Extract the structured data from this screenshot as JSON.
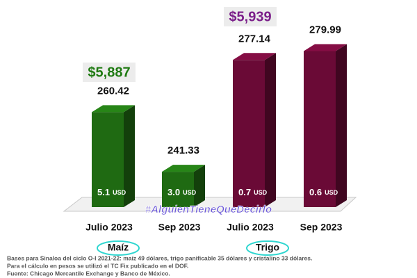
{
  "chart_data": {
    "type": "bar",
    "categories": [
      "Julio 2023",
      "Sep 2023"
    ],
    "series": [
      {
        "name": "Maíz",
        "color": "#1f6a12",
        "values": [
          260.42,
          241.33
        ],
        "annotation": "$5,887",
        "bar_notes": [
          "5.1",
          "3.0"
        ]
      },
      {
        "name": "Trigo",
        "color": "#6a0a36",
        "values": [
          277.14,
          279.99
        ],
        "annotation": "$5,939",
        "bar_notes": [
          "0.7",
          "0.6"
        ]
      }
    ],
    "bar_note_unit": "USD",
    "ylim": [
      230,
      285
    ],
    "watermark": "#AlguienTieneQueDecirlo",
    "footnotes": [
      "Bases para Sinaloa del ciclo O-I 2021-22: maíz 49 dólares, trigo panificable 35 dólares y cristalino 33 dólares.",
      "Para el cálculo en pesos se utilizó el TC Fix publicado en el DOF.",
      "Fuente: Chicago Mercantile Exchange y Banco de México."
    ]
  }
}
